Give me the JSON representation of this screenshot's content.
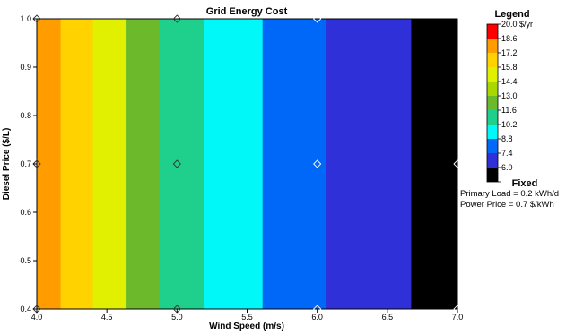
{
  "chart_data": {
    "type": "heatmap",
    "title": "Grid Energy Cost",
    "xlabel": "Wind Speed (m/s)",
    "ylabel": "Diesel Price ($/L)",
    "xlim": [
      4.0,
      7.0
    ],
    "ylim": [
      0.4,
      1.0
    ],
    "x_ticks": [
      "4.0",
      "4.5",
      "5.0",
      "5.5",
      "6.0",
      "6.5",
      "7.0"
    ],
    "y_ticks": [
      "0.4",
      "0.5",
      "0.6",
      "0.7",
      "0.8",
      "0.9",
      "1.0"
    ],
    "bands": [
      {
        "x_from": 4.0,
        "x_to": 4.17,
        "color": "#ff9c00"
      },
      {
        "x_from": 4.17,
        "x_to": 4.4,
        "color": "#ffd200"
      },
      {
        "x_from": 4.4,
        "x_to": 4.64,
        "color": "#e1f000"
      },
      {
        "x_from": 4.64,
        "x_to": 4.87,
        "color": "#6cba2c"
      },
      {
        "x_from": 4.87,
        "x_to": 5.19,
        "color": "#1ed08c"
      },
      {
        "x_from": 5.19,
        "x_to": 5.61,
        "color": "#00f8f8"
      },
      {
        "x_from": 5.61,
        "x_to": 6.06,
        "color": "#0068f8"
      },
      {
        "x_from": 6.06,
        "x_to": 6.67,
        "color": "#3030d8"
      },
      {
        "x_from": 6.67,
        "x_to": 7.0,
        "color": "#000000"
      }
    ],
    "markers": [
      {
        "x": 4.0,
        "y": 1.0
      },
      {
        "x": 5.0,
        "y": 1.0
      },
      {
        "x": 6.0,
        "y": 1.0
      },
      {
        "x": 4.0,
        "y": 0.7
      },
      {
        "x": 5.0,
        "y": 0.7
      },
      {
        "x": 6.0,
        "y": 0.7
      },
      {
        "x": 7.0,
        "y": 0.7
      },
      {
        "x": 4.0,
        "y": 0.4
      },
      {
        "x": 5.0,
        "y": 0.4
      },
      {
        "x": 6.0,
        "y": 0.4
      },
      {
        "x": 7.0,
        "y": 0.4
      }
    ],
    "legend": {
      "title": "Legend",
      "placement": "right",
      "max_label": "20.0 $/yr",
      "items": [
        {
          "label": "18.6",
          "color": "#ff9c00"
        },
        {
          "label": "17.2",
          "color": "#ffd200"
        },
        {
          "label": "15.8",
          "color": "#e1f000"
        },
        {
          "label": "14.4",
          "color": "#a8d800"
        },
        {
          "label": "13.0",
          "color": "#6cba2c"
        },
        {
          "label": "11.6",
          "color": "#1ed08c"
        },
        {
          "label": "10.2",
          "color": "#00f8f8"
        },
        {
          "label": "8.8",
          "color": "#0068f8"
        },
        {
          "label": "7.4",
          "color": "#3030d8"
        },
        {
          "label": "6.0",
          "color": "#000000"
        }
      ],
      "top_color": "#ff0000"
    },
    "grid": false
  },
  "fixed": {
    "title": "Fixed",
    "items": [
      "Primary Load = 0.2 kWh/d",
      "Power Price = 0.7 $/kWh"
    ]
  }
}
